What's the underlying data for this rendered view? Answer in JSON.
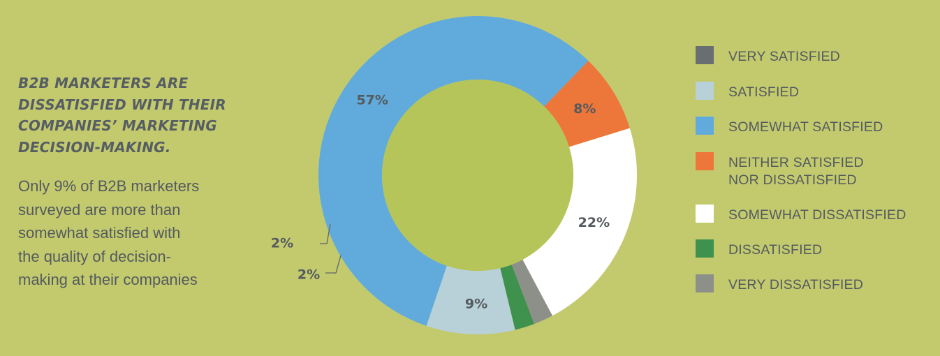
{
  "colors": {
    "background": "#c3ca6e",
    "donut_hole": "#b6c55a",
    "text_dark": "#545a5e",
    "headline": "#575e63",
    "leader_line": "#5f6468"
  },
  "headline": "B2B MARKETERS ARE\nDISSATISFIED WITH THEIR\nCOMPANIES’ MARKETING\nDECISION-MAKING.",
  "body_text": "Only 9% of B2B marketers\nsurveyed are more than\nsomewhat satisfied with\nthe quality of decision-\nmaking at their companies",
  "chart_data": {
    "type": "pie",
    "variant": "donut",
    "series": [
      {
        "name": "VERY SATISFIED",
        "value": 0,
        "color": "#686e72",
        "label": ""
      },
      {
        "name": "SATISFIED",
        "value": 9,
        "color": "#b8d0d8",
        "label": "9%"
      },
      {
        "name": "SOMEWHAT SATISFIED",
        "value": 57,
        "color": "#61abdc",
        "label": "57%"
      },
      {
        "name": "NEITHER SATISFIED\nNOR DISSATISFIED",
        "value": 8,
        "color": "#ed773a",
        "label": "8%"
      },
      {
        "name": "SOMEWHAT DISSATISFIED",
        "value": 22,
        "color": "#ffffff",
        "label": "22%"
      },
      {
        "name": "DISSATISFIED",
        "value": 2,
        "color": "#3f924e",
        "label": "2%"
      },
      {
        "name": "VERY DISSATISFIED",
        "value": 2,
        "color": "#8d9089",
        "label": "2%"
      }
    ],
    "legend_position": "right"
  }
}
